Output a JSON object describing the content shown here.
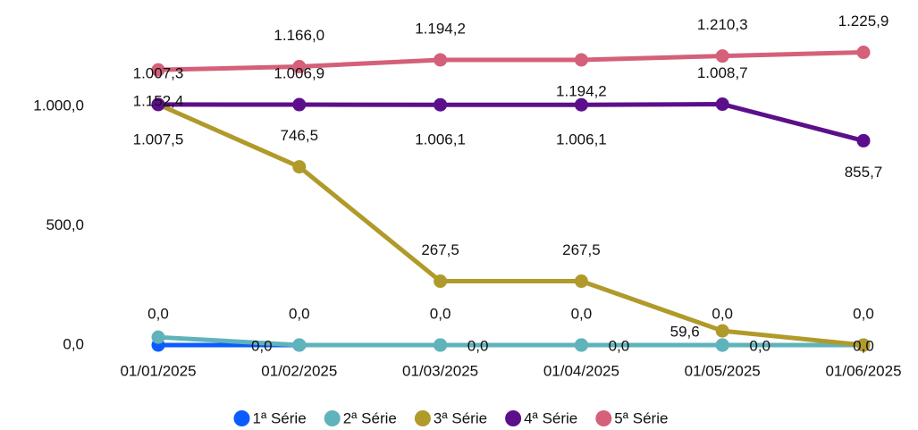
{
  "chart_data": {
    "type": "line",
    "categories": [
      "01/01/2025",
      "01/02/2025",
      "01/03/2025",
      "01/04/2025",
      "01/05/2025",
      "01/06/2025"
    ],
    "ylim": [
      0,
      1400
    ],
    "yticks": [
      {
        "value": 0,
        "label": "0,0"
      },
      {
        "value": 500,
        "label": "500,0"
      },
      {
        "value": 1000,
        "label": "1.000,0"
      }
    ],
    "grid": false,
    "legend": "bottom",
    "series": [
      {
        "name": "1ª Série",
        "color": "#0a5cff",
        "values": [
          0,
          0,
          0,
          0,
          0,
          0
        ],
        "value_labels": [
          "0,0",
          "0,0",
          "0,0",
          "0,0",
          "0,0",
          "0,0"
        ]
      },
      {
        "name": "2ª Série",
        "color": "#5fb3bb",
        "values": [
          33,
          0,
          0,
          0,
          0,
          0
        ],
        "value_labels": [
          null,
          "0,0",
          "0,0",
          "0,0",
          "0,0",
          null
        ]
      },
      {
        "name": "3ª Série",
        "color": "#b09a2a",
        "values": [
          1007.5,
          746.5,
          267.5,
          267.5,
          59.6,
          0
        ],
        "value_labels": [
          "1.007,5",
          "746,5",
          "267,5",
          "267,5",
          "59,6",
          "0,0"
        ]
      },
      {
        "name": "4ª Série",
        "color": "#5c0f8b",
        "values": [
          1007.3,
          1006.9,
          1006.1,
          1006.1,
          1008.7,
          855.7
        ],
        "value_labels": [
          "1.007,3",
          "1.006,9",
          "1.006,1",
          "1.006,1",
          "1.008,7",
          "855,7"
        ]
      },
      {
        "name": "5ª Série",
        "color": "#d4607a",
        "values": [
          1152.4,
          1166.0,
          1194.2,
          1194.2,
          1210.3,
          1225.9
        ],
        "value_labels": [
          "1.152,4",
          "1.166,0",
          "1.194,2",
          "1.194,2",
          "1.210,3",
          "1.225,9"
        ]
      }
    ]
  }
}
